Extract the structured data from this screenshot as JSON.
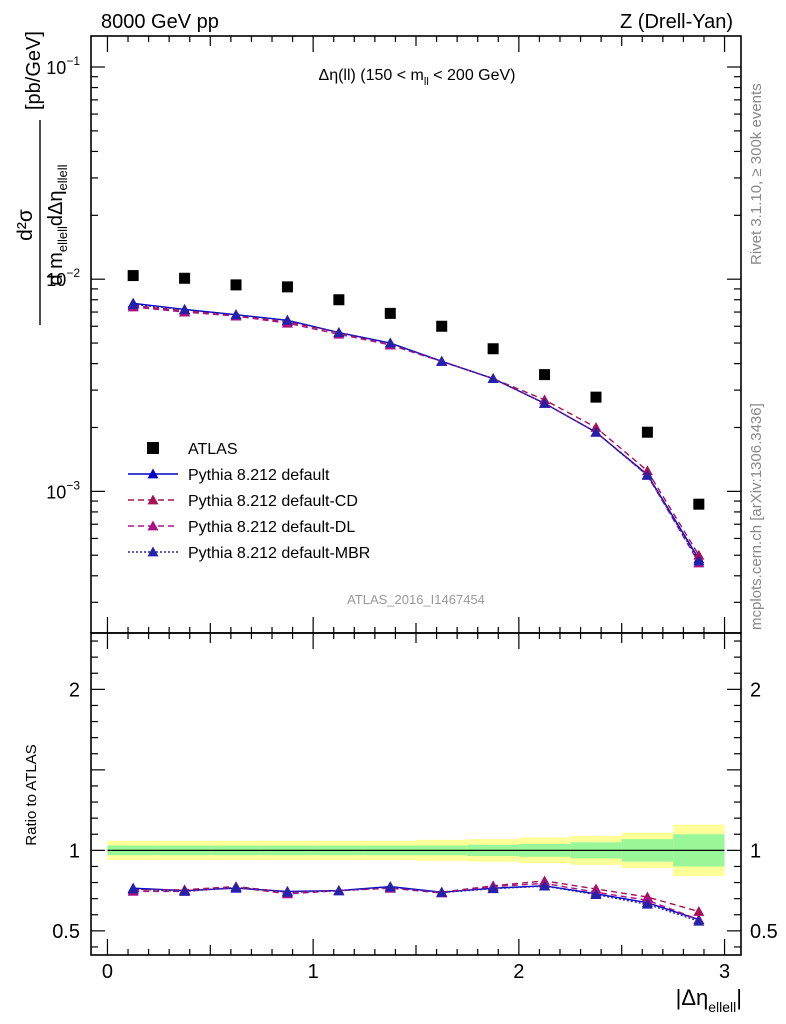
{
  "header": {
    "left_title": "8000 GeV pp",
    "right_title": "Z (Drell-Yan)"
  },
  "side_labels": {
    "rivet": "Rivet 3.1.10, ≥ 300k events",
    "mcplots": "mcplots.cern.ch [arXiv:1306.3436]"
  },
  "analysis_label": "ATLAS_2016_I1467454",
  "colors": {
    "atlas": "#000000",
    "default": "#0000cc",
    "default_cd": "#aa1155",
    "default_dl": "#aa1188",
    "default_mbr": "#2222aa",
    "band_stat": "#99f799",
    "band_total": "#ffff99"
  },
  "chart_data": [
    {
      "type": "scatter",
      "panel": "main",
      "title": "Δη(ll) (150 < m_ll < 200 GeV)",
      "title_parts": {
        "a": "Δη(ll) (150 < m",
        "sub": "ll",
        "b": " < 200 GeV)"
      },
      "ylabel_parts": {
        "num": "d²σ",
        "den_a": "d m",
        "den_sub1": "ellell",
        "den_b": "dΔη",
        "den_sub2": "ellell",
        "unit": "[pb/GeV]"
      },
      "yscale": "log",
      "xlim": [
        -0.08,
        3.08
      ],
      "ylim": [
        0.000215,
        0.14
      ],
      "y_ticks": [
        {
          "value": 0.001,
          "base": "10",
          "exp": "−3"
        },
        {
          "value": 0.01,
          "base": "10",
          "exp": "−2"
        },
        {
          "value": 0.1,
          "base": "10",
          "exp": "−1"
        }
      ],
      "legend_position": "lower-left",
      "x": [
        0.125,
        0.375,
        0.625,
        0.875,
        1.125,
        1.375,
        1.625,
        1.875,
        2.125,
        2.375,
        2.625,
        2.875
      ],
      "series": [
        {
          "name": "ATLAS",
          "key": "atlas",
          "marker": "square",
          "dash": "solid",
          "values": [
            0.0104,
            0.0101,
            0.0094,
            0.0092,
            0.008,
            0.0069,
            0.006,
            0.0047,
            0.00355,
            0.00278,
            0.0019,
            0.00087
          ]
        },
        {
          "name": "Pythia 8.212 default",
          "key": "default",
          "marker": "triangle",
          "dash": "solid",
          "values": [
            0.0077,
            0.0072,
            0.0068,
            0.0064,
            0.0056,
            0.005,
            0.0041,
            0.0034,
            0.0026,
            0.0019,
            0.0012,
            0.00048
          ]
        },
        {
          "name": "Pythia 8.212 default-CD",
          "key": "default_cd",
          "marker": "triangle",
          "dash": "dashed",
          "values": [
            0.0075,
            0.0071,
            0.0067,
            0.0063,
            0.0056,
            0.0049,
            0.0041,
            0.0034,
            0.0027,
            0.002,
            0.00125,
            0.0005
          ]
        },
        {
          "name": "Pythia 8.212 default-DL",
          "key": "default_dl",
          "marker": "triangle",
          "dash": "dashed",
          "values": [
            0.0074,
            0.007,
            0.0067,
            0.0062,
            0.0055,
            0.0049,
            0.0041,
            0.0034,
            0.0026,
            0.0019,
            0.00119,
            0.00046
          ]
        },
        {
          "name": "Pythia 8.212 default-MBR",
          "key": "default_mbr",
          "marker": "triangle",
          "dash": "dotted",
          "values": [
            0.0076,
            0.0072,
            0.0068,
            0.0064,
            0.0056,
            0.005,
            0.0041,
            0.0034,
            0.0026,
            0.0019,
            0.00119,
            0.00047
          ]
        }
      ]
    },
    {
      "type": "line",
      "panel": "ratio",
      "ylabel": "Ratio to ATLAS",
      "xlabel_parts": {
        "a": "|Δη",
        "sub": "ellell",
        "b": "|"
      },
      "xlim": [
        -0.08,
        3.08
      ],
      "ylim": [
        0.35,
        2.35
      ],
      "x_ticks": [
        0,
        1,
        2,
        3
      ],
      "y_ticks": [
        0.5,
        1,
        2
      ],
      "x_edges": [
        0.0,
        0.25,
        0.5,
        0.75,
        1.0,
        1.25,
        1.5,
        1.75,
        2.0,
        2.25,
        2.5,
        2.75,
        3.0
      ],
      "band_stat": [
        0.03,
        0.03,
        0.03,
        0.03,
        0.03,
        0.03,
        0.03,
        0.035,
        0.04,
        0.05,
        0.07,
        0.1
      ],
      "band_total": [
        0.06,
        0.06,
        0.06,
        0.06,
        0.06,
        0.06,
        0.065,
        0.07,
        0.08,
        0.09,
        0.11,
        0.16
      ],
      "x": [
        0.125,
        0.375,
        0.625,
        0.875,
        1.125,
        1.375,
        1.625,
        1.875,
        2.125,
        2.375,
        2.625,
        2.875
      ],
      "series": [
        {
          "name": "Pythia 8.212 default",
          "key": "default",
          "dash": "solid",
          "values": [
            0.765,
            0.75,
            0.765,
            0.745,
            0.75,
            0.775,
            0.74,
            0.765,
            0.78,
            0.73,
            0.675,
            0.57
          ]
        },
        {
          "name": "Pythia 8.212 default-CD",
          "key": "default_cd",
          "dash": "dashed",
          "values": [
            0.755,
            0.755,
            0.775,
            0.74,
            0.75,
            0.765,
            0.74,
            0.78,
            0.81,
            0.76,
            0.71,
            0.62
          ]
        },
        {
          "name": "Pythia 8.212 default-DL",
          "key": "default_dl",
          "dash": "dashed",
          "values": [
            0.745,
            0.745,
            0.77,
            0.73,
            0.75,
            0.765,
            0.735,
            0.775,
            0.795,
            0.74,
            0.69,
            0.57
          ]
        },
        {
          "name": "Pythia 8.212 default-MBR",
          "key": "default_mbr",
          "dash": "dotted",
          "values": [
            0.76,
            0.745,
            0.77,
            0.74,
            0.748,
            0.772,
            0.738,
            0.762,
            0.778,
            0.725,
            0.665,
            0.56
          ]
        }
      ]
    }
  ]
}
